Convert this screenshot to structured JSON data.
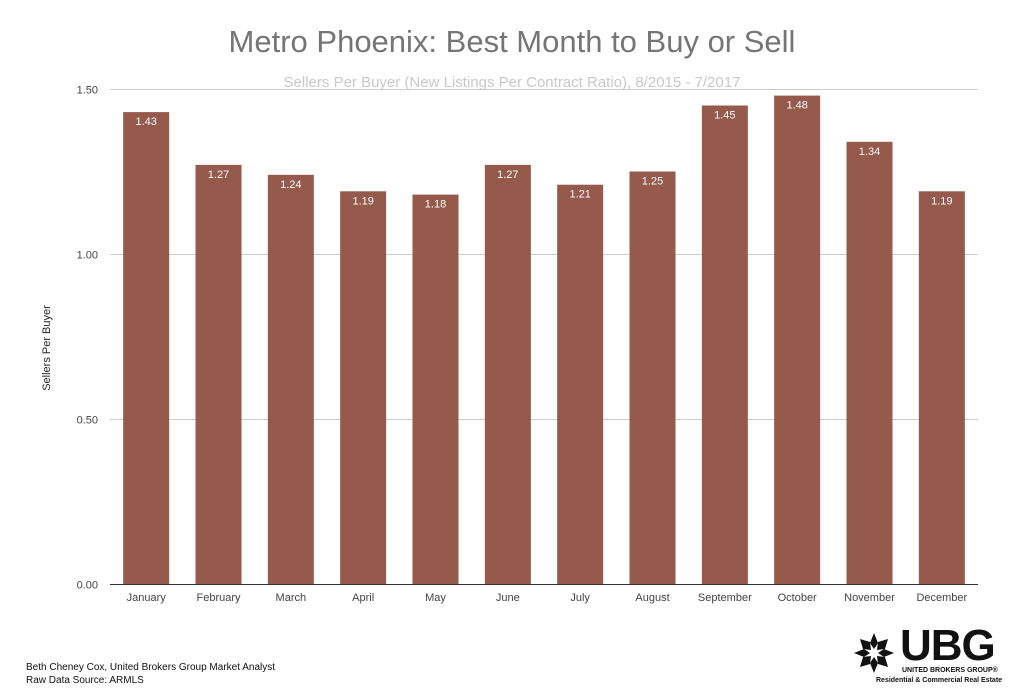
{
  "chart_data": {
    "type": "bar",
    "title": "Metro Phoenix:  Best Month to Buy or Sell",
    "subtitle": "Sellers Per Buyer (New Listings Per Contract Ratio), 8/2015 - 7/2017",
    "xlabel": "",
    "ylabel": "Sellers Per Buyer",
    "ylim": [
      0,
      1.5
    ],
    "yticks": [
      "0.00",
      "0.50",
      "1.00",
      "1.50"
    ],
    "ytick_values": [
      0,
      0.5,
      1.0,
      1.5
    ],
    "grid": true,
    "bar_color": "#955a4c",
    "categories": [
      "January",
      "February",
      "March",
      "April",
      "May",
      "June",
      "July",
      "August",
      "September",
      "October",
      "November",
      "December"
    ],
    "values": [
      1.43,
      1.27,
      1.24,
      1.19,
      1.18,
      1.27,
      1.21,
      1.25,
      1.45,
      1.48,
      1.34,
      1.19
    ],
    "data_labels": [
      "1.43",
      "1.27",
      "1.24",
      "1.19",
      "1.18",
      "1.27",
      "1.21",
      "1.25",
      "1.45",
      "1.48",
      "1.34",
      "1.19"
    ]
  },
  "footer": {
    "line1": "Beth Cheney Cox, United Brokers Group Market Analyst",
    "line2": "Raw Data Source:  ARMLS"
  },
  "logo": {
    "name": "UBG",
    "line1": "UNITED BROKERS GROUP®",
    "line2": "Residential & Commercial Real Estate"
  }
}
